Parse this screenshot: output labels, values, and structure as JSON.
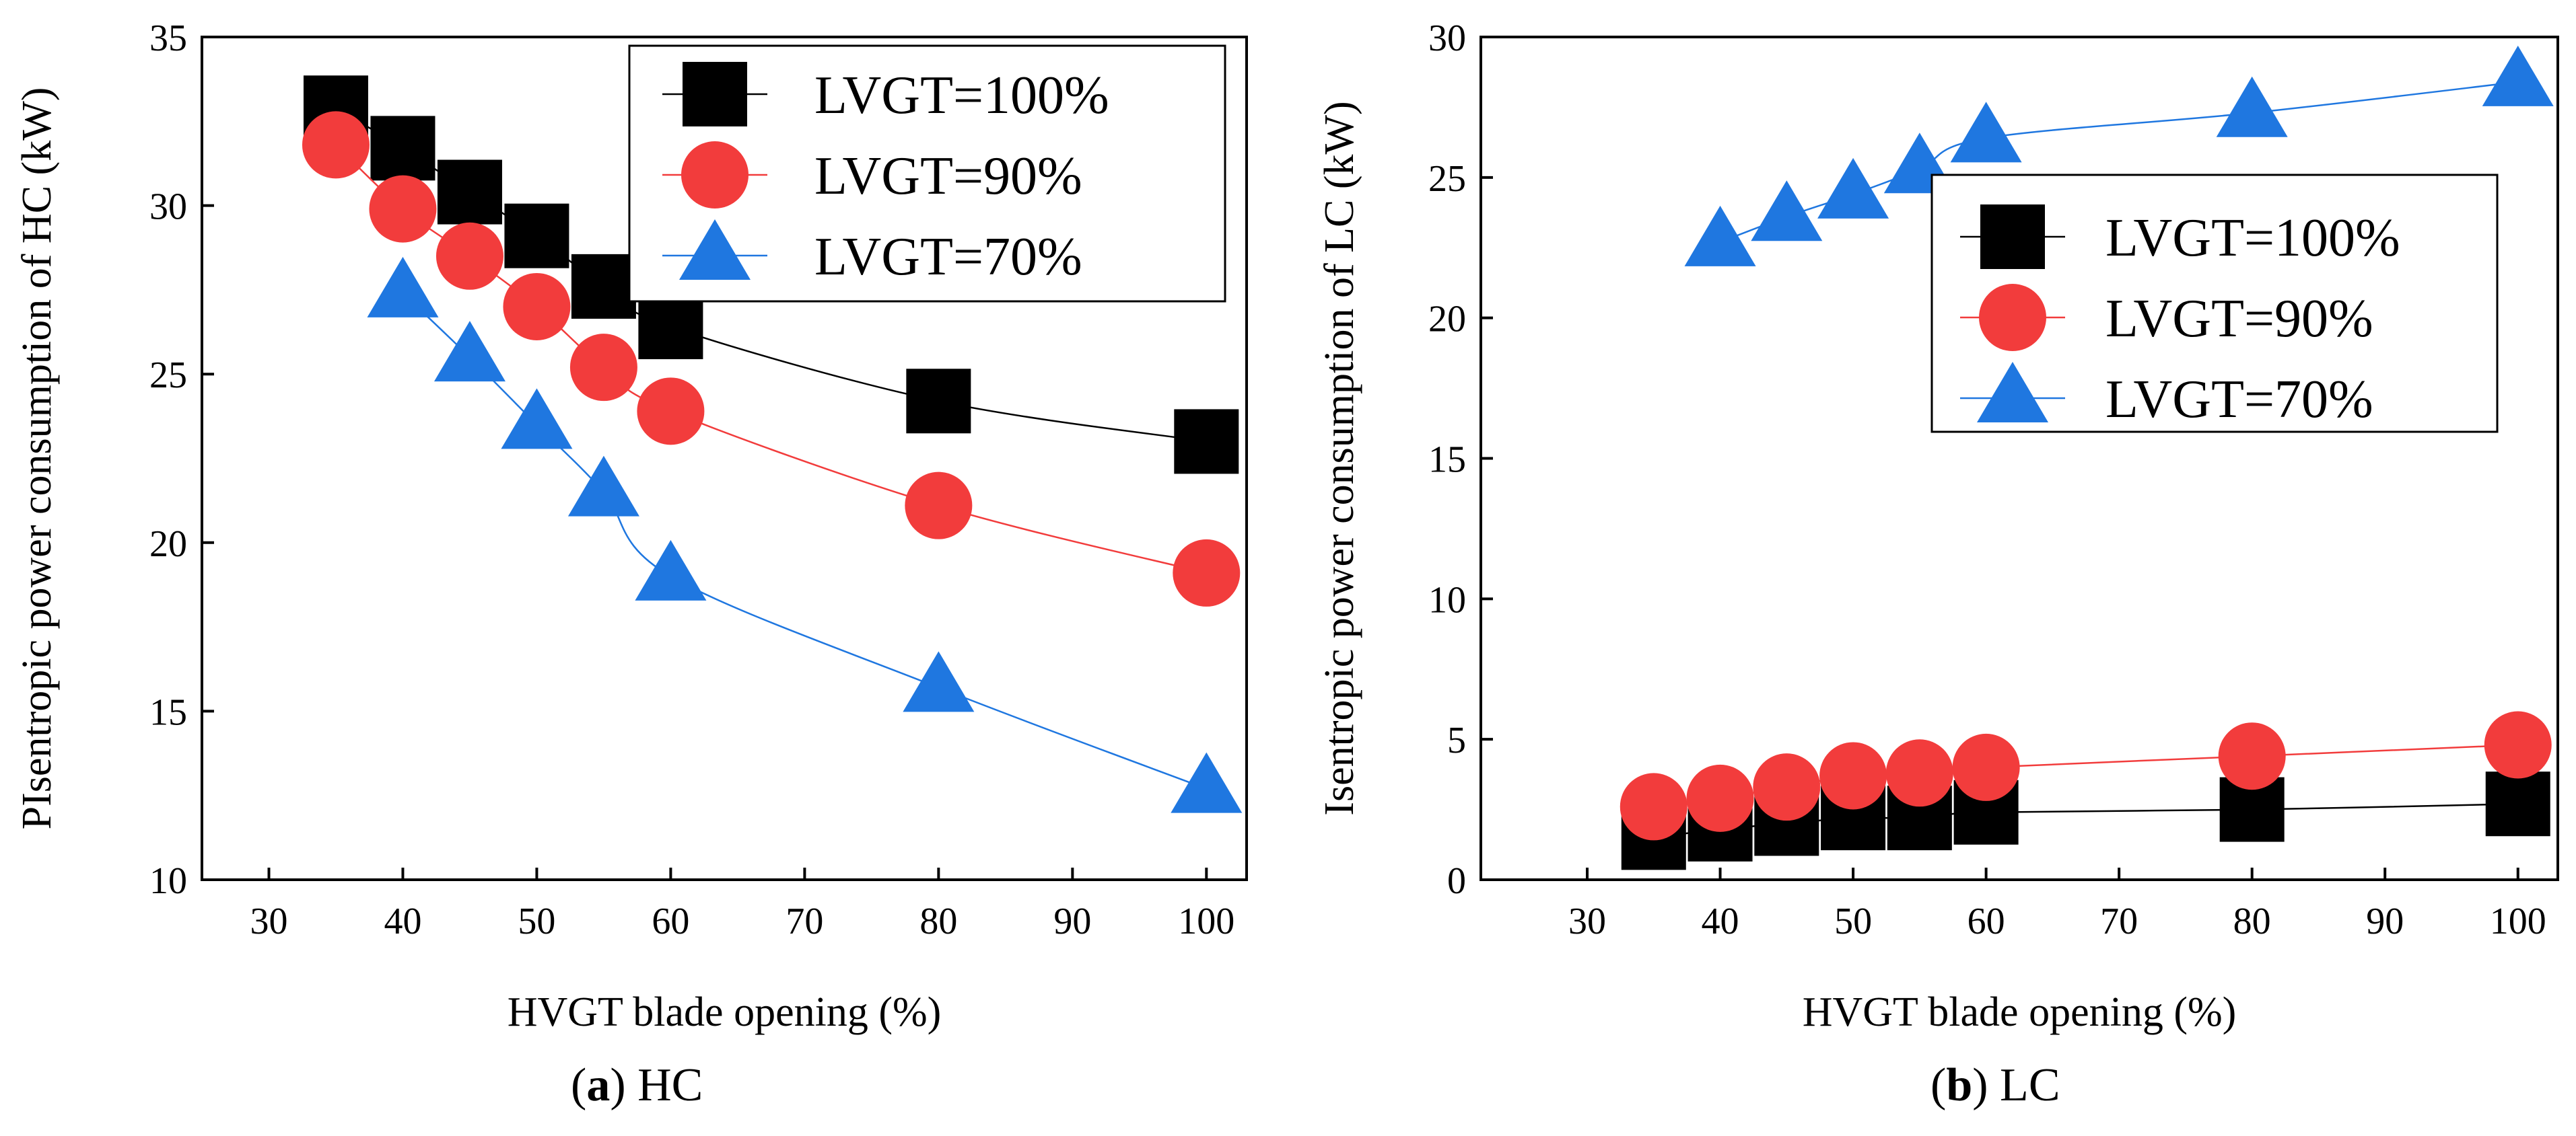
{
  "colors": {
    "LVGT=100%": "#000000",
    "LVGT=90%": "#f23c3c",
    "LVGT=70%": "#1f77e0"
  },
  "chart_data": [
    {
      "id": "a",
      "type": "line",
      "panel_label": "a",
      "caption_text": "HC",
      "xlabel": "HVGT blade opening (%)",
      "ylabel": "PIsentropic power consumption of HC (kW)",
      "xlim": [
        25,
        103
      ],
      "ylim": [
        10,
        35
      ],
      "xticks": [
        30,
        40,
        50,
        60,
        70,
        80,
        90,
        100
      ],
      "yticks": [
        10,
        15,
        20,
        25,
        30,
        35
      ],
      "legend_position": "top-right",
      "x": [
        35,
        40,
        45,
        50,
        55,
        60,
        80,
        100
      ],
      "series": [
        {
          "name": "LVGT=100%",
          "marker": "square",
          "values": [
            32.9,
            31.7,
            30.4,
            29.1,
            27.6,
            26.4,
            24.2,
            23.0
          ]
        },
        {
          "name": "LVGT=90%",
          "marker": "circle",
          "values": [
            31.8,
            29.9,
            28.5,
            27.0,
            25.2,
            23.9,
            21.1,
            19.1
          ]
        },
        {
          "name": "LVGT=70%",
          "marker": "triangle",
          "x": [
            40,
            45,
            50,
            55,
            60,
            80,
            100
          ],
          "values": [
            27.4,
            25.5,
            23.5,
            21.5,
            19.0,
            15.7,
            12.7
          ]
        }
      ]
    },
    {
      "id": "b",
      "type": "line",
      "panel_label": "b",
      "caption_text": "LC",
      "xlabel": "HVGT blade opening (%)",
      "ylabel": "Isentropic power consumption of LC (kW)",
      "xlim": [
        22,
        103
      ],
      "ylim": [
        0,
        30
      ],
      "xticks": [
        30,
        40,
        50,
        60,
        70,
        80,
        90,
        100
      ],
      "yticks": [
        0,
        5,
        10,
        15,
        20,
        25,
        30
      ],
      "legend_position": "center-right",
      "x": [
        35,
        40,
        45,
        50,
        55,
        60,
        80,
        100
      ],
      "series": [
        {
          "name": "LVGT=100%",
          "marker": "square",
          "values": [
            1.5,
            1.8,
            2.0,
            2.2,
            2.2,
            2.4,
            2.5,
            2.7
          ]
        },
        {
          "name": "LVGT=90%",
          "marker": "circle",
          "values": [
            2.6,
            2.9,
            3.3,
            3.7,
            3.8,
            4.0,
            4.4,
            4.8
          ]
        },
        {
          "name": "LVGT=70%",
          "marker": "triangle",
          "x": [
            40,
            45,
            50,
            55,
            60,
            80,
            100
          ],
          "values": [
            22.7,
            23.6,
            24.4,
            25.3,
            26.4,
            27.3,
            28.4
          ]
        }
      ]
    }
  ]
}
